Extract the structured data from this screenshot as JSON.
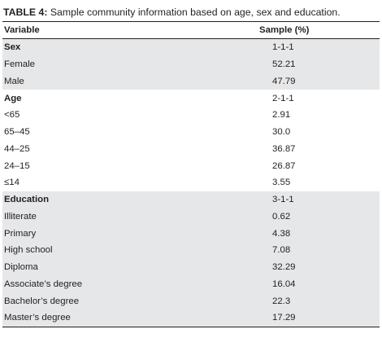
{
  "caption": {
    "lead": "TABLE 4:",
    "text": " Sample community information based on age, sex and education."
  },
  "table": {
    "headers": [
      "Variable",
      "Sample (%)"
    ],
    "rows": [
      {
        "label": "Sex",
        "value": "1-1-1",
        "group": true,
        "shaded": true
      },
      {
        "label": "Female",
        "value": "52.21",
        "group": false,
        "shaded": true
      },
      {
        "label": "Male",
        "value": "47.79",
        "group": false,
        "shaded": true
      },
      {
        "label": "Age",
        "value": "2-1-1",
        "group": true,
        "shaded": false
      },
      {
        "label": "<65",
        "value": "2.91",
        "group": false,
        "shaded": false
      },
      {
        "label": "65–45",
        "value": "30.0",
        "group": false,
        "shaded": false
      },
      {
        "label": "44–25",
        "value": "36.87",
        "group": false,
        "shaded": false
      },
      {
        "label": "24–15",
        "value": "26.87",
        "group": false,
        "shaded": false
      },
      {
        "label": "≤14",
        "value": "3.55",
        "group": false,
        "shaded": false
      },
      {
        "label": "Education",
        "value": "3-1-1",
        "group": true,
        "shaded": true
      },
      {
        "label": "Illiterate",
        "value": "0.62",
        "group": false,
        "shaded": true
      },
      {
        "label": "Primary",
        "value": "4.38",
        "group": false,
        "shaded": true
      },
      {
        "label": "High school",
        "value": "7.08",
        "group": false,
        "shaded": true
      },
      {
        "label": "Diploma",
        "value": "32.29",
        "group": false,
        "shaded": true
      },
      {
        "label": "Associate’s degree",
        "value": "16.04",
        "group": false,
        "shaded": true
      },
      {
        "label": "Bachelor’s degree",
        "value": "22.3",
        "group": false,
        "shaded": true
      },
      {
        "label": "Master’s degree",
        "value": "17.29",
        "group": false,
        "shaded": true
      }
    ]
  }
}
